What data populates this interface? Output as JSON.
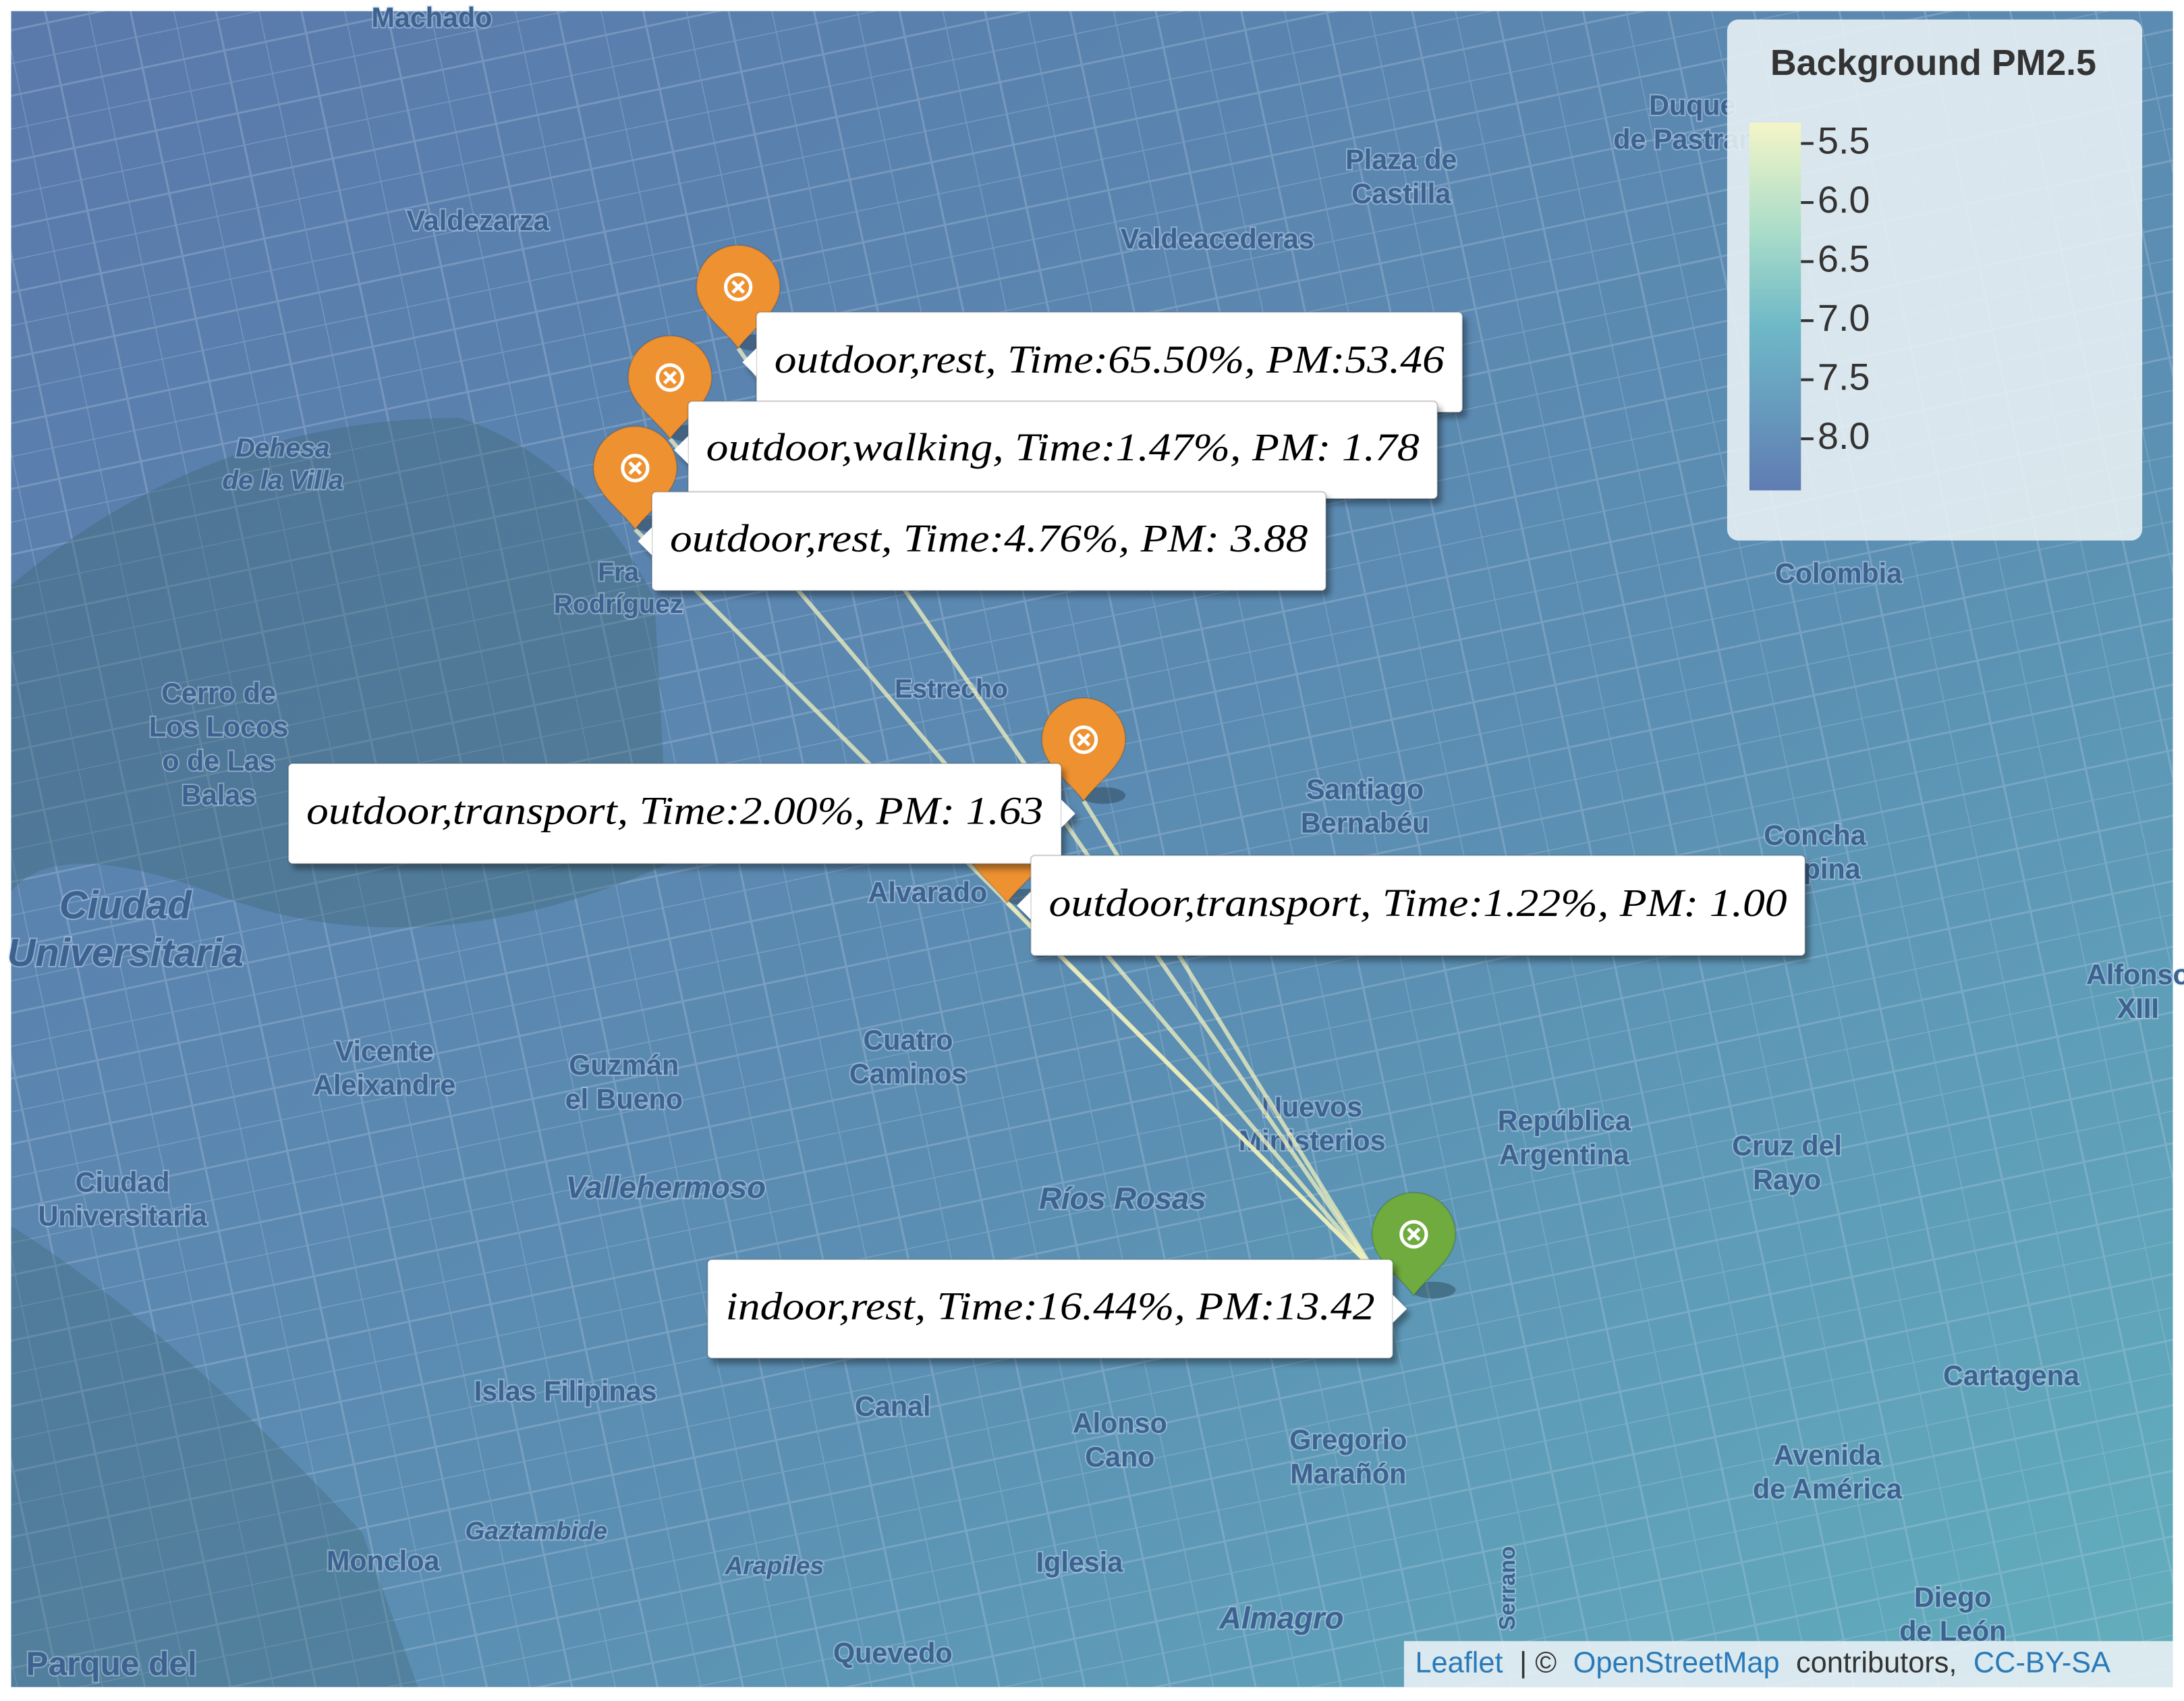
{
  "legend": {
    "title": "Background PM2.5",
    "ticks": [
      "5.5",
      "6.0",
      "6.5",
      "7.0",
      "7.5",
      "8.0"
    ]
  },
  "markers": [
    {
      "label": "outdoor,rest, Time:65.50%, PM:53.46"
    },
    {
      "label": "outdoor,walking, Time:1.47%, PM: 1.78"
    },
    {
      "label": "outdoor,rest, Time:4.76%, PM: 3.88"
    },
    {
      "label": "outdoor,transport, Time:2.00%, PM: 1.63"
    },
    {
      "label": "outdoor,transport, Time:1.22%, PM: 1.00"
    },
    {
      "label": "indoor,rest, Time:16.44%, PM:13.42"
    }
  ],
  "places": [
    {
      "lines": [
        "Machado"
      ]
    },
    {
      "lines": [
        "Valdezarza"
      ]
    },
    {
      "lines": [
        "Dehesa",
        "de la Villa"
      ]
    },
    {
      "lines": [
        "Cerro de",
        "Los Locos",
        "o de Las",
        "Balas"
      ]
    },
    {
      "lines": [
        "Ciudad",
        "Universitaria"
      ]
    },
    {
      "lines": [
        "Fra",
        "Rodríguez"
      ]
    },
    {
      "lines": [
        "Estrecho"
      ]
    },
    {
      "lines": [
        "Valdeacederas"
      ]
    },
    {
      "lines": [
        "Plaza de",
        "Castilla"
      ]
    },
    {
      "lines": [
        "Duque",
        "de Pastrana"
      ]
    },
    {
      "lines": [
        "Colombia"
      ]
    },
    {
      "lines": [
        "Santiago",
        "Bernabéu"
      ]
    },
    {
      "lines": [
        "Concha",
        "Espina"
      ]
    },
    {
      "lines": [
        "Alvarado"
      ]
    },
    {
      "lines": [
        "Vicente",
        "Aleixandre"
      ]
    },
    {
      "lines": [
        "Guzmán",
        "el Bueno"
      ]
    },
    {
      "lines": [
        "Cuatro",
        "Caminos"
      ]
    },
    {
      "lines": [
        "Nuevos",
        "Ministerios"
      ]
    },
    {
      "lines": [
        "República",
        "Argentina"
      ]
    },
    {
      "lines": [
        "Cruz del",
        "Rayo"
      ]
    },
    {
      "lines": [
        "Alfonso",
        "XIII"
      ]
    },
    {
      "lines": [
        "Ciudad",
        "Universitaria"
      ]
    },
    {
      "lines": [
        "Vallehermoso"
      ]
    },
    {
      "lines": [
        "Ríos Rosas"
      ]
    },
    {
      "lines": [
        "Islas Filipinas"
      ]
    },
    {
      "lines": [
        "Canal"
      ]
    },
    {
      "lines": [
        "Alonso",
        "Cano"
      ]
    },
    {
      "lines": [
        "Gregorio",
        "Marañón"
      ]
    },
    {
      "lines": [
        "Avenida",
        "de América"
      ]
    },
    {
      "lines": [
        "Cartagena"
      ]
    },
    {
      "lines": [
        "Moncloa"
      ]
    },
    {
      "lines": [
        "Gaztambide"
      ]
    },
    {
      "lines": [
        "Arapiles"
      ]
    },
    {
      "lines": [
        "Iglesia"
      ]
    },
    {
      "lines": [
        "Almagro"
      ]
    },
    {
      "lines": [
        "Quevedo"
      ]
    },
    {
      "lines": [
        "Diego",
        "de León"
      ]
    },
    {
      "lines": [
        "Parque del"
      ]
    },
    {
      "lines": [
        "Serrano"
      ]
    }
  ],
  "attribution": {
    "leaflet": "Leaflet",
    "sep": "| ©",
    "osm": "OpenStreetMap",
    "contrib": "contributors,",
    "license": "CC-BY-SA"
  }
}
